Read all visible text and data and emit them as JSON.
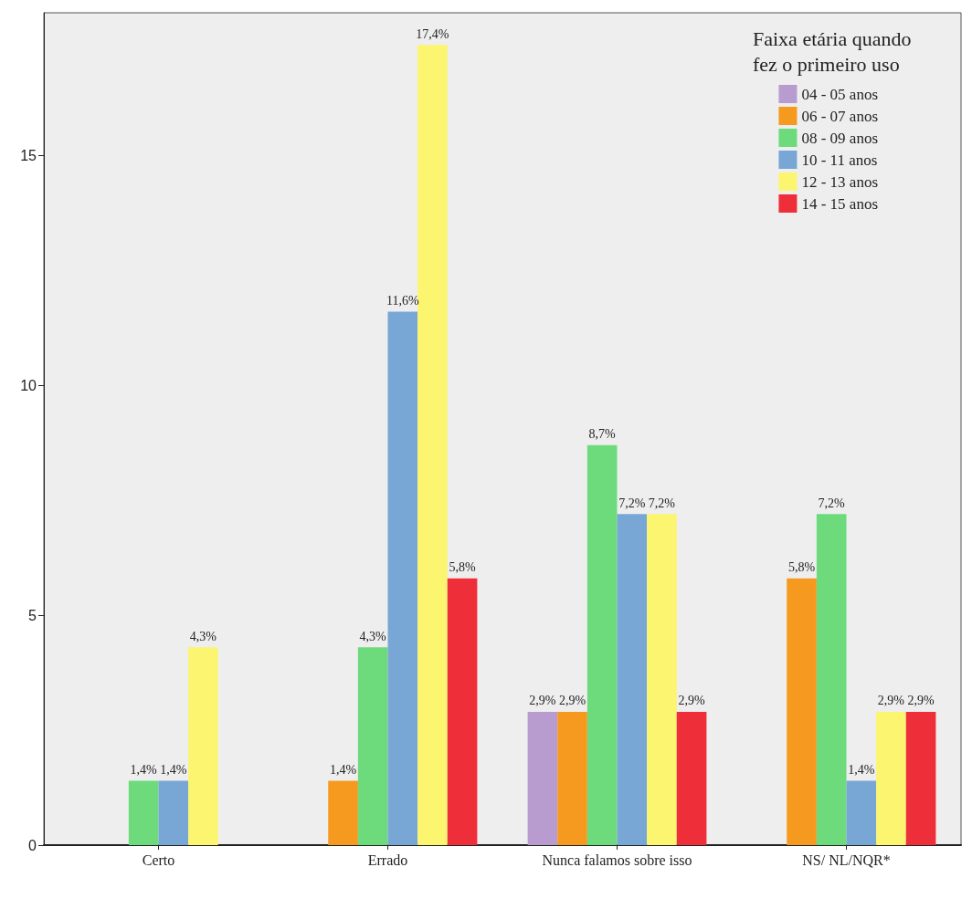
{
  "chart_data": {
    "type": "bar",
    "categories": [
      "Certo",
      "Errado",
      "Nunca falamos sobre isso",
      "NS/ NL/NQR*"
    ],
    "legend_title": "Faixa etária quando fez o primeiro uso",
    "legend": "top right",
    "grid": false,
    "ylim": [
      0,
      18.1
    ],
    "yticks": [
      0,
      5,
      10,
      15
    ],
    "series": [
      {
        "name": "04 - 05 anos",
        "color": "#b99ccf",
        "values": [
          null,
          null,
          2.9,
          null
        ],
        "value_labels": [
          null,
          null,
          "2,9%",
          null
        ]
      },
      {
        "name": "06 - 07 anos",
        "color": "#f59a1f",
        "values": [
          null,
          1.4,
          2.9,
          5.8
        ],
        "value_labels": [
          null,
          "1,4%",
          "2,9%",
          "5,8%"
        ]
      },
      {
        "name": "08 - 09 anos",
        "color": "#6ddb7b",
        "values": [
          1.4,
          4.3,
          8.7,
          7.2
        ],
        "value_labels": [
          "1,4%",
          "4,3%",
          "8,7%",
          "7,2%"
        ]
      },
      {
        "name": "10 - 11 anos",
        "color": "#78a7d6",
        "values": [
          1.4,
          11.6,
          7.2,
          1.4
        ],
        "value_labels": [
          "1,4%",
          "11,6%",
          "7,2%",
          "1,4%"
        ]
      },
      {
        "name": "12 - 13 anos",
        "color": "#fbf56f",
        "values": [
          4.3,
          17.4,
          7.2,
          2.9
        ],
        "value_labels": [
          "4,3%",
          "17,4%",
          "7,2%",
          "2,9%"
        ]
      },
      {
        "name": "14 - 15 anos",
        "color": "#ee2f3a",
        "values": [
          null,
          5.8,
          2.9,
          2.9
        ],
        "value_labels": [
          null,
          "5,8%",
          "2,9%",
          "2,9%"
        ]
      }
    ]
  }
}
